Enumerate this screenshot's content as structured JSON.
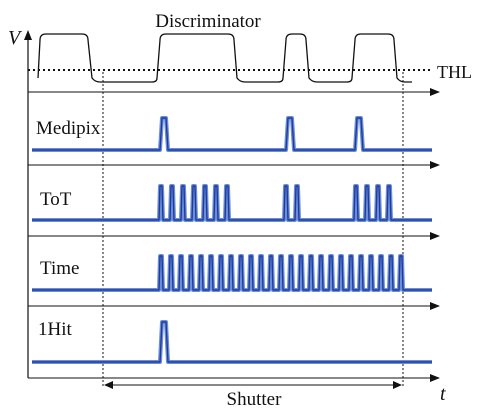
{
  "title": "Discriminator",
  "axes": {
    "y_label": "V",
    "x_label": "t"
  },
  "threshold_label": "THL",
  "shutter_label": "Shutter",
  "panels": [
    {
      "id": "medipix",
      "label": "Medipix"
    },
    {
      "id": "tot",
      "label": "ToT"
    },
    {
      "id": "time",
      "label": "Time"
    },
    {
      "id": "onehit",
      "label": "1Hit"
    }
  ],
  "colors": {
    "signal_outer": "#6b8fd6",
    "signal_inner": "#1f3a9e",
    "axis": "#111111",
    "threshold": "#111111"
  }
}
